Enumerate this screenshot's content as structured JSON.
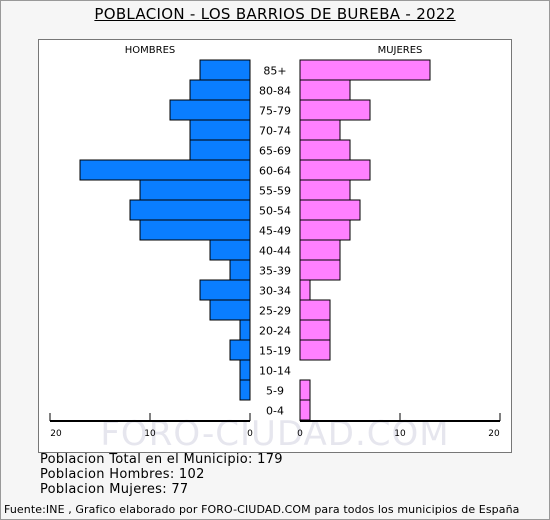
{
  "page": {
    "title": "POBLACION - LOS BARRIOS DE BUREBA - 2022",
    "watermark": "FORO-CIUDAD.COM",
    "stats": {
      "total": "Poblacion Total en el Municipio: 179",
      "men": "Poblacion Hombres: 102",
      "women": "Poblacion Mujeres: 77"
    },
    "footer": "Fuente:INE , Grafico elaborado por FORO-CIUDAD.COM para todos los municipios de España"
  },
  "chart_data": {
    "type": "bar",
    "subtype": "population-pyramid",
    "title": "POBLACION - LOS BARRIOS DE BUREBA - 2022",
    "categories": [
      "85+",
      "80-84",
      "75-79",
      "70-74",
      "65-69",
      "60-64",
      "55-59",
      "50-54",
      "45-49",
      "40-44",
      "35-39",
      "30-34",
      "25-29",
      "20-24",
      "15-19",
      "10-14",
      "5-9",
      "0-4"
    ],
    "series": [
      {
        "name": "HOMBRES",
        "color": "#0a7eff",
        "values": [
          5,
          6,
          8,
          6,
          6,
          17,
          11,
          12,
          11,
          4,
          2,
          5,
          4,
          1,
          2,
          1,
          1,
          0
        ]
      },
      {
        "name": "MUJERES",
        "color": "#ff80ff",
        "values": [
          13,
          5,
          7,
          4,
          5,
          7,
          5,
          6,
          5,
          4,
          4,
          1,
          3,
          3,
          3,
          0,
          1,
          1
        ]
      }
    ],
    "x_ticks": [
      "20",
      "10",
      "0",
      "0",
      "10",
      "20"
    ],
    "xlim": [
      0,
      20
    ],
    "grid": false,
    "legend": "top"
  }
}
